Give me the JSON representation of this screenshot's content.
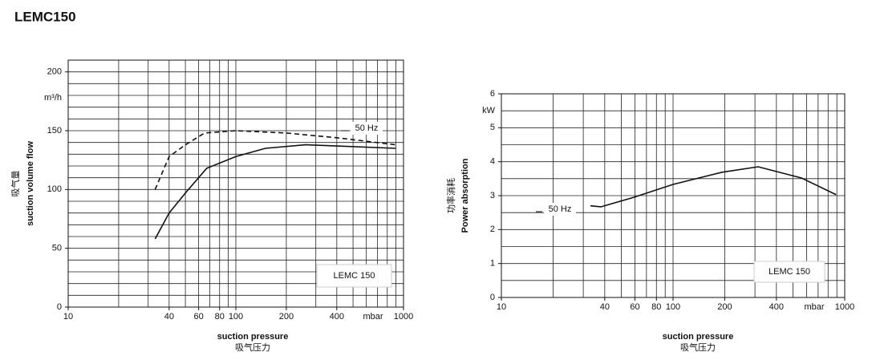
{
  "title": "LEMC150",
  "chart_data": [
    {
      "type": "line",
      "y_label_cn": "吸气量",
      "y_label": "suction volume flow",
      "y_unit": "m³/h",
      "x_label": "suction pressure",
      "x_label_cn": "吸气压力",
      "x_unit": "mbar",
      "annotation": "50 Hz",
      "box_label": "LEMC 150",
      "x_scale": "log",
      "xlim": [
        10,
        1000
      ],
      "ylim": [
        0,
        210
      ],
      "xticks": [
        10,
        40,
        60,
        80,
        100,
        200,
        400,
        1000
      ],
      "yticks": [
        0,
        50,
        100,
        150,
        200
      ],
      "xgrid": [
        20,
        30,
        40,
        50,
        60,
        70,
        80,
        90,
        100,
        200,
        300,
        400,
        500,
        600,
        700,
        800,
        900
      ],
      "ygrid": [
        10,
        20,
        30,
        40,
        50,
        60,
        70,
        80,
        90,
        100,
        110,
        120,
        130,
        140,
        150,
        160,
        170,
        180,
        190,
        200
      ],
      "series": [
        {
          "name": "50 Hz",
          "color": "#111111",
          "dash": true,
          "x": [
            33,
            40,
            50,
            65,
            100,
            200,
            400,
            900
          ],
          "values": [
            100,
            128,
            138,
            148,
            150,
            148,
            144,
            138
          ]
        },
        {
          "color": "#111111",
          "dash": false,
          "x": [
            33,
            40,
            50,
            67,
            100,
            150,
            260,
            400,
            900
          ],
          "values": [
            58,
            80,
            97,
            118,
            128,
            135,
            138,
            137,
            135
          ]
        }
      ]
    },
    {
      "type": "line",
      "y_label_cn": "功率消耗",
      "y_label": "Power absorption",
      "y_unit": "kW",
      "x_label": "suction pressure",
      "x_label_cn": "吸气压力",
      "x_unit": "mbar",
      "annotation": "50 Hz",
      "box_label": "LEMC 150",
      "x_scale": "log",
      "xlim": [
        10,
        1000
      ],
      "ylim": [
        0,
        6
      ],
      "xticks": [
        10,
        40,
        60,
        80,
        100,
        200,
        400,
        1000
      ],
      "yticks": [
        0,
        1,
        2,
        3,
        4,
        5,
        6
      ],
      "xgrid": [
        20,
        30,
        40,
        50,
        60,
        70,
        80,
        90,
        100,
        200,
        300,
        400,
        500,
        600,
        700,
        800,
        900
      ],
      "ygrid": [
        0.5,
        1,
        1.5,
        2,
        2.5,
        3,
        3.5,
        4,
        4.5,
        5,
        5.5,
        6
      ],
      "series": [
        {
          "name": "50 Hz",
          "color": "#111111",
          "dash": false,
          "x": [
            33,
            38,
            59,
            100,
            193,
            313,
            560,
            890
          ],
          "values": [
            2.7,
            2.67,
            2.95,
            3.33,
            3.69,
            3.85,
            3.52,
            3.03
          ]
        }
      ]
    }
  ]
}
